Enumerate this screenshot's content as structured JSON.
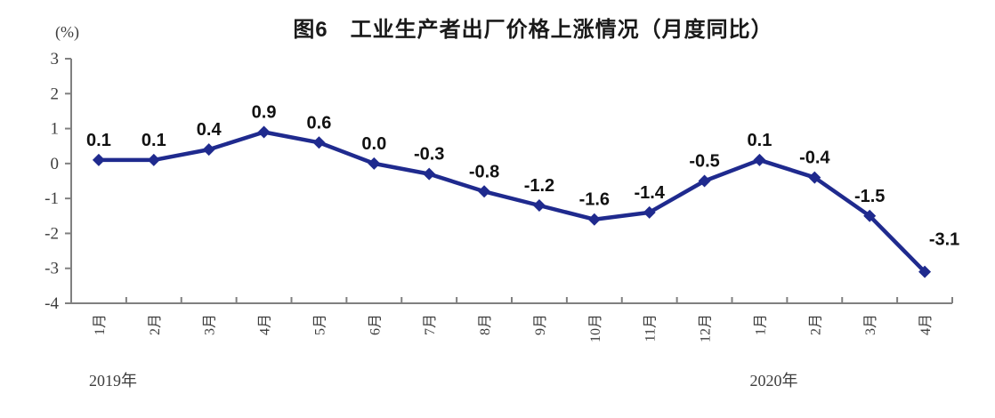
{
  "chart_data": {
    "type": "line",
    "title": "图6　工业生产者出厂价格上涨情况（月度同比）",
    "unit_label": "(%)",
    "categories": [
      "1月",
      "2月",
      "3月",
      "4月",
      "5月",
      "6月",
      "7月",
      "8月",
      "9月",
      "10月",
      "11月",
      "12月",
      "1月",
      "2月",
      "3月",
      "4月"
    ],
    "year_labels": [
      {
        "text": "2019年",
        "at_category": 0
      },
      {
        "text": "2020年",
        "at_category": 12
      }
    ],
    "values": [
      0.1,
      0.1,
      0.4,
      0.9,
      0.6,
      0.0,
      -0.3,
      -0.8,
      -1.2,
      -1.6,
      -1.4,
      -0.5,
      0.1,
      -0.4,
      -1.5,
      -3.1
    ],
    "data_labels": [
      "0.1",
      "0.1",
      "0.4",
      "0.9",
      "0.6",
      "0.0",
      "-0.3",
      "-0.8",
      "-1.2",
      "-1.6",
      "-1.4",
      "-0.5",
      "0.1",
      "-0.4",
      "-1.5",
      "-3.1"
    ],
    "ylim": [
      -4,
      3
    ],
    "yticks": [
      3,
      2,
      1,
      0,
      -1,
      -2,
      -3,
      -4
    ],
    "line_color": "#1F2A8E",
    "axis_color": "#808080",
    "marker": "diamond",
    "grid": false,
    "legend": false
  }
}
